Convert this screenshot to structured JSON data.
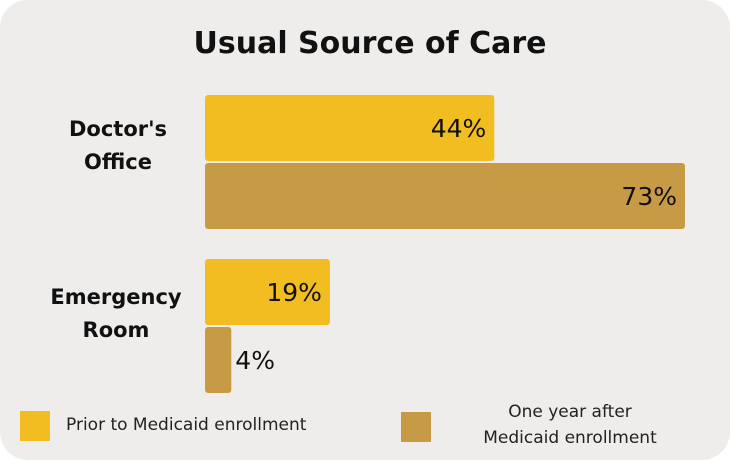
{
  "chart_data": {
    "type": "bar",
    "orientation": "horizontal",
    "title": "Usual Source of Care",
    "categories": [
      "Doctor's Office",
      "Emergency Room"
    ],
    "category_lines": [
      [
        "Doctor's",
        "Office"
      ],
      [
        "Emergency",
        "Room"
      ]
    ],
    "series": [
      {
        "name": "Prior to Medicaid enrollment",
        "values": [
          44,
          19
        ],
        "labels": [
          "44%",
          "19%"
        ],
        "color": "#f2bd21"
      },
      {
        "name": "One year after Medicaid enrollment",
        "values": [
          73,
          4
        ],
        "labels": [
          "73%",
          "4%"
        ],
        "color": "#c79b45"
      }
    ],
    "value_unit": "%",
    "xlim": [
      0,
      73
    ],
    "grid": false,
    "legend_placement": "bottom"
  },
  "legend": {
    "prior_label": "Prior to Medicaid enrollment",
    "after_line1": "One year after",
    "after_line2": "Medicaid enrollment"
  }
}
